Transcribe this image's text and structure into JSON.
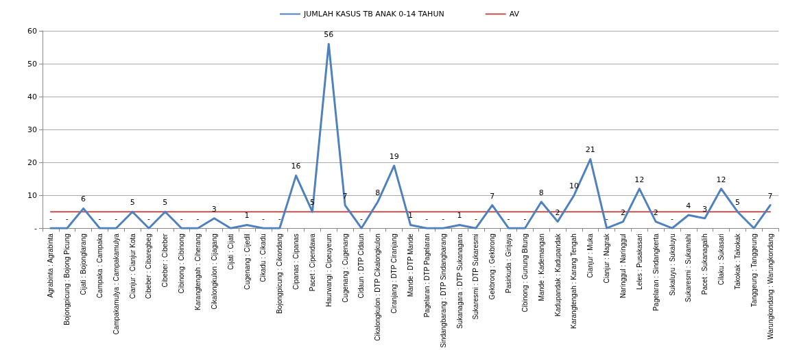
{
  "chart_data": {
    "type": "line",
    "categories": [
      "Agrabinta : Agrabinta",
      "Bojongpicung : Bojong Picung",
      "Cijati : Bojonglarang",
      "Campaka : Campaka",
      "Campakamulya : Campakamulya",
      "Cianjur : Cianjur Kota",
      "Cibeber : Cibaregbeg",
      "Cibeber : Cibeber",
      "Cibinong : Cibinong",
      "Karangtengah : Ciherang",
      "Cikalongkulon : Cijagang",
      "Cijati : Cijati",
      "Cugenang : Cijedil",
      "Cikadu : Cikadu",
      "Bojongpicung : Cikondang",
      "Cipanas : Cipanas",
      "Pacet : Cipendawa",
      "Haurwangi : Cipeuyeum",
      "Cugenang : Cugenang",
      "Cidaun : DTP Cidaun",
      "Cikalongkulon : DTP Cikalongkulon",
      "Ciranjang : DTP Ciranjang",
      "Mande : DTP Mande",
      "Pagelaran : DTP Pagelaran",
      "Sindangbarang : DTP Sindangbarang",
      "Sukanagara : DTP Sukanagara",
      "Sukaresmi : DTP Sukaresmi",
      "Gekbrong : Gekbrong",
      "Pasirkuda : Girijaya",
      "Cibinong : Gunung Bitung",
      "Mande : Kademangan",
      "Kadupandak : Kadupandak",
      "Karangtengah : Karang Tengah",
      "Cianjur : Muka",
      "Cianjur : Nagrak",
      "Naringgul : Naringgul",
      "Leles : Pusakasari",
      "Pagelaran : Sindangkerta",
      "Sukaluyu : Sukaluyu",
      "Sukaresmi : Sukamahi",
      "Pacet : Sukanagalih",
      "Cilaku : Sukasari",
      "Takokak : Takokak",
      "Tanggeung : Tanggeung",
      "Warungkondang : Warungkondang"
    ],
    "series": [
      {
        "name": "JUMLAH KASUS TB ANAK 0-14 TAHUN",
        "color": "#4f81bd",
        "values": [
          0,
          0,
          6,
          0,
          0,
          5,
          0,
          5,
          0,
          0,
          3,
          0,
          1,
          0,
          0,
          16,
          5,
          56,
          7,
          0,
          8,
          19,
          1,
          0,
          0,
          1,
          0,
          7,
          0,
          0,
          8,
          2,
          10,
          21,
          0,
          2,
          12,
          2,
          0,
          4,
          3,
          12,
          5,
          0,
          7
        ],
        "value_labels": [
          "-",
          "-",
          "6",
          "-",
          "-",
          "5",
          "-",
          "5",
          "-",
          "-",
          "3",
          "-",
          "1",
          "-",
          "-",
          "16",
          "5",
          "56",
          "7",
          "-",
          "8",
          "19",
          "1",
          "-",
          "-",
          "1",
          "-",
          "7",
          "-",
          "-",
          "8",
          "2",
          "10",
          "21",
          "-",
          "2",
          "12",
          "2",
          "-",
          "4",
          "3",
          "12",
          "5",
          "-",
          "7"
        ]
      },
      {
        "name": "AV",
        "color": "#c0504d",
        "values": [
          5,
          5,
          5,
          5,
          5,
          5,
          5,
          5,
          5,
          5,
          5,
          5,
          5,
          5,
          5,
          5,
          5,
          5,
          5,
          5,
          5,
          5,
          5,
          5,
          5,
          5,
          5,
          5,
          5,
          5,
          5,
          5,
          5,
          5,
          5,
          5,
          5,
          5,
          5,
          5,
          5,
          5,
          5,
          5,
          5
        ]
      }
    ],
    "ylim": [
      0,
      60
    ],
    "yticks": [
      {
        "value": 0,
        "label": "-"
      },
      10,
      20,
      30,
      40,
      50,
      60
    ],
    "grid": "y",
    "legend": "top",
    "marker": "none",
    "line_style": "solid"
  }
}
